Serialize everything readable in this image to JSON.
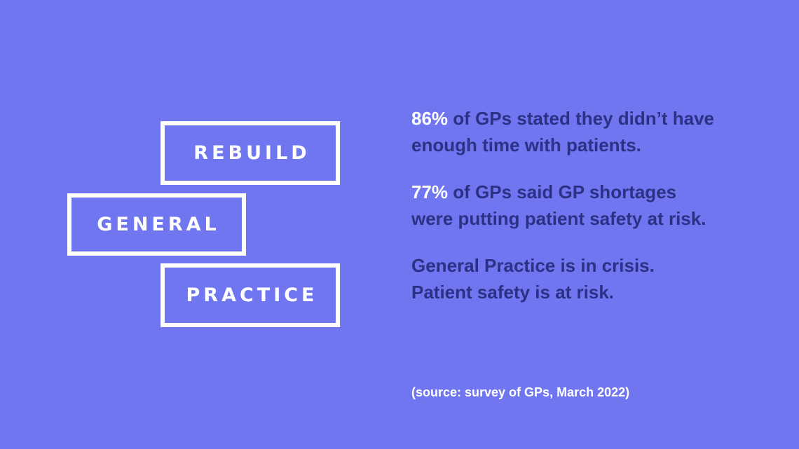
{
  "logo": {
    "line1": "REBUILD",
    "line2": "GENERAL",
    "line3": "PRACTICE"
  },
  "stats": [
    {
      "highlight": "86%",
      "line1_rest": " of GPs stated they didn’t have",
      "line2": "enough time with patients."
    },
    {
      "highlight": "77%",
      "line1_rest": " of GPs said GP shortages",
      "line2": "were putting patient safety at risk."
    }
  ],
  "conclusion": {
    "line1": "General Practice is in crisis.",
    "line2": "Patient safety is at risk."
  },
  "source": "(source: survey of GPs, March 2022)",
  "colors": {
    "background": "#6f76ef",
    "text_dark": "#2b3184",
    "highlight": "#ffffff"
  }
}
